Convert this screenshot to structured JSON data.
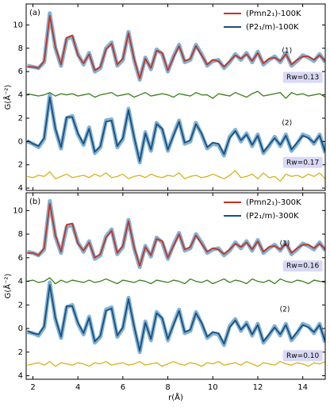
{
  "chart_data": [
    {
      "type": "line",
      "panel_label": "(a)",
      "ylabel": "G(Å⁻²)",
      "annotations": [
        "(1)",
        "Rw=0.13",
        "(2)",
        "Rw=0.17"
      ],
      "x": [
        1.75,
        2.0,
        2.25,
        2.5,
        2.75,
        3.0,
        3.25,
        3.5,
        3.75,
        4.0,
        4.25,
        4.5,
        4.75,
        5.0,
        5.25,
        5.5,
        5.75,
        6.0,
        6.25,
        6.5,
        6.75,
        7.0,
        7.25,
        7.5,
        7.75,
        8.0,
        8.25,
        8.5,
        8.75,
        9.0,
        9.25,
        9.5,
        9.75,
        10.0,
        10.25,
        10.5,
        10.75,
        11.0,
        11.25,
        11.5,
        11.75,
        12.0,
        12.25,
        12.5,
        12.75,
        13.0,
        13.25,
        13.5,
        13.75,
        14.0,
        14.25,
        14.5,
        14.75,
        15.0
      ],
      "xlim": [
        1.7,
        15
      ],
      "xticks": [
        2,
        4,
        6,
        8,
        10,
        12,
        14
      ],
      "ylim": [
        -4.2,
        11.8
      ],
      "yticks": [
        {
          "value": -4,
          "label": "4"
        },
        {
          "value": -2,
          "label": "2"
        },
        0,
        2,
        4,
        6,
        8,
        10
      ],
      "series": [
        {
          "color": "#7fb3d8",
          "values": [
            6.5,
            6.4,
            6.3,
            6.8,
            11.0,
            8.0,
            6.5,
            8.8,
            9.0,
            7.5,
            6.6,
            7.6,
            6.0,
            6.3,
            8.0,
            8.5,
            6.5,
            7.0,
            9.4,
            7.0,
            5.3,
            7.2,
            6.2,
            7.9,
            7.5,
            6.0,
            7.3,
            8.3,
            6.8,
            7.0,
            8.3,
            7.5,
            6.5,
            6.9,
            7.0,
            6.3,
            6.8,
            7.5,
            7.0,
            7.6,
            6.8,
            7.7,
            6.6,
            7.0,
            7.3,
            6.8,
            7.6,
            6.5,
            6.9,
            7.4,
            7.2,
            6.9,
            7.5,
            6.8
          ]
        },
        {
          "name": "(Pmn2₁)-100K",
          "color": "#c8321e",
          "values": [
            6.4,
            6.4,
            6.3,
            6.9,
            10.8,
            8.1,
            6.6,
            8.9,
            9.1,
            7.4,
            6.7,
            7.5,
            6.1,
            6.4,
            7.9,
            8.4,
            6.6,
            7.1,
            9.3,
            7.1,
            5.4,
            7.1,
            6.3,
            7.8,
            7.6,
            6.1,
            7.2,
            8.2,
            6.9,
            7.1,
            8.2,
            7.4,
            6.6,
            7.0,
            6.9,
            6.4,
            6.9,
            7.4,
            7.1,
            7.5,
            6.9,
            7.6,
            6.7,
            7.1,
            7.2,
            6.9,
            7.5,
            6.6,
            7.0,
            7.3,
            7.3,
            7.0,
            7.4,
            6.9
          ]
        },
        {
          "color": "#7fb3d8",
          "values": [
            0.0,
            -0.2,
            -0.5,
            0.2,
            4.0,
            1.0,
            -0.6,
            2.0,
            2.2,
            0.6,
            -0.3,
            1.2,
            -1.0,
            -0.5,
            1.8,
            1.9,
            -0.5,
            0.2,
            2.8,
            0.3,
            -1.8,
            0.8,
            -0.8,
            1.6,
            1.0,
            -0.8,
            0.6,
            1.8,
            -0.2,
            0.0,
            1.6,
            0.6,
            -0.6,
            -0.2,
            -0.3,
            -1.2,
            0.4,
            1.0,
            0.0,
            0.7,
            -0.4,
            0.6,
            -1.0,
            -0.4,
            0.4,
            -0.4,
            0.6,
            -0.8,
            -0.2,
            0.6,
            0.4,
            -0.2,
            0.6,
            -1.0
          ]
        },
        {
          "name": "(P2₁/m)-100K",
          "color": "#1f4e79",
          "values": [
            0.1,
            -0.2,
            -0.4,
            0.3,
            3.8,
            1.1,
            -0.5,
            2.1,
            2.1,
            0.7,
            -0.2,
            1.1,
            -0.9,
            -0.4,
            1.7,
            1.8,
            -0.4,
            0.3,
            2.7,
            0.4,
            -1.7,
            0.7,
            -0.7,
            1.5,
            1.1,
            -0.7,
            0.5,
            1.7,
            -0.1,
            0.1,
            1.5,
            0.7,
            -0.5,
            -0.1,
            -0.2,
            -1.1,
            0.3,
            0.9,
            0.1,
            0.6,
            -0.3,
            0.5,
            -0.9,
            -0.3,
            0.3,
            -0.3,
            0.5,
            -0.7,
            -0.1,
            0.5,
            0.3,
            -0.1,
            0.5,
            -0.9
          ]
        },
        {
          "color": "#3a7d1a",
          "values": [
            4.1,
            4.0,
            3.9,
            4.0,
            4.2,
            3.9,
            4.1,
            4.0,
            4.1,
            3.9,
            4.0,
            4.1,
            3.8,
            4.0,
            4.1,
            4.2,
            3.9,
            4.0,
            4.1,
            3.8,
            4.0,
            4.2,
            3.9,
            4.0,
            4.1,
            4.0,
            3.8,
            4.1,
            4.0,
            3.9,
            4.2,
            4.0,
            4.0,
            3.7,
            4.1,
            4.0,
            3.9,
            4.2,
            4.0,
            3.8,
            4.1,
            4.3,
            3.9,
            4.0,
            4.1,
            4.2,
            3.7,
            4.2,
            4.0,
            4.1,
            3.9,
            4.0,
            4.1,
            3.8
          ]
        },
        {
          "color": "#d4b41c",
          "values": [
            -3.0,
            -3.1,
            -2.9,
            -3.0,
            -2.6,
            -3.2,
            -3.0,
            -2.8,
            -3.1,
            -3.0,
            -2.9,
            -3.1,
            -2.8,
            -3.0,
            -2.7,
            -3.1,
            -3.0,
            -2.8,
            -3.2,
            -3.0,
            -2.9,
            -3.1,
            -2.8,
            -3.0,
            -3.1,
            -2.9,
            -3.0,
            -2.7,
            -3.2,
            -3.0,
            -2.9,
            -3.1,
            -3.0,
            -2.8,
            -3.0,
            -3.2,
            -2.9,
            -2.5,
            -3.1,
            -3.0,
            -2.8,
            -3.2,
            -2.7,
            -3.1,
            -3.0,
            -3.4,
            -2.8,
            -3.0,
            -2.9,
            -3.1,
            -2.8,
            -3.0,
            -2.7,
            -3.2
          ]
        }
      ]
    },
    {
      "type": "line",
      "panel_label": "(b)",
      "ylabel": "G(Å⁻²)",
      "xlabel": "r(Å)",
      "annotations": [
        "(1)",
        "Rw=0.16",
        "(2)",
        "Rw=0.10"
      ],
      "x": [
        1.75,
        2.0,
        2.25,
        2.5,
        2.75,
        3.0,
        3.25,
        3.5,
        3.75,
        4.0,
        4.25,
        4.5,
        4.75,
        5.0,
        5.25,
        5.5,
        5.75,
        6.0,
        6.25,
        6.5,
        6.75,
        7.0,
        7.25,
        7.5,
        7.75,
        8.0,
        8.25,
        8.5,
        8.75,
        9.0,
        9.25,
        9.5,
        9.75,
        10.0,
        10.25,
        10.5,
        10.75,
        11.0,
        11.25,
        11.5,
        11.75,
        12.0,
        12.25,
        12.5,
        12.75,
        13.0,
        13.25,
        13.5,
        13.75,
        14.0,
        14.25,
        14.5,
        14.75,
        15.0
      ],
      "xlim": [
        1.7,
        15
      ],
      "xticks": [
        2,
        4,
        6,
        8,
        10,
        12,
        14
      ],
      "ylim": [
        -4.3,
        11.5
      ],
      "yticks": [
        {
          "value": -4,
          "label": "4"
        },
        {
          "value": -2,
          "label": "2"
        },
        0,
        2,
        4,
        6,
        8,
        10
      ],
      "series": [
        {
          "color": "#7fb3d8",
          "values": [
            6.5,
            6.4,
            6.2,
            6.7,
            10.8,
            7.8,
            6.4,
            8.6,
            8.8,
            7.3,
            6.5,
            7.4,
            5.9,
            6.2,
            7.8,
            8.4,
            6.3,
            6.9,
            9.2,
            6.8,
            5.2,
            7.0,
            6.1,
            7.7,
            7.3,
            5.9,
            7.1,
            8.1,
            6.6,
            6.8,
            8.0,
            7.3,
            6.4,
            6.7,
            6.8,
            6.2,
            6.6,
            7.3,
            6.8,
            7.4,
            6.6,
            7.5,
            6.4,
            6.8,
            7.1,
            6.6,
            7.3,
            6.3,
            6.7,
            7.2,
            7.0,
            6.7,
            7.3,
            6.6
          ]
        },
        {
          "name": "(Pmn2₁)-300K",
          "color": "#c8321e",
          "values": [
            6.4,
            6.4,
            6.2,
            6.8,
            10.6,
            7.9,
            6.5,
            8.8,
            8.9,
            7.2,
            6.6,
            7.3,
            6.0,
            6.3,
            7.7,
            8.3,
            6.4,
            7.0,
            9.1,
            6.9,
            5.3,
            6.9,
            6.2,
            7.6,
            7.4,
            6.0,
            7.0,
            8.0,
            6.7,
            6.9,
            7.9,
            7.2,
            6.5,
            6.8,
            6.7,
            6.3,
            6.7,
            7.2,
            6.9,
            7.3,
            6.7,
            7.4,
            6.5,
            6.9,
            7.0,
            6.7,
            7.2,
            6.4,
            6.8,
            7.1,
            7.1,
            6.8,
            7.2,
            6.7
          ]
        },
        {
          "color": "#7fb3d8",
          "values": [
            -0.3,
            -0.4,
            -0.6,
            0.1,
            3.9,
            0.8,
            -0.8,
            1.8,
            2.0,
            0.4,
            -0.5,
            1.0,
            -1.2,
            -0.7,
            1.6,
            1.8,
            -0.7,
            0.0,
            2.6,
            0.1,
            -2.0,
            0.6,
            -1.0,
            1.4,
            0.8,
            -1.0,
            0.4,
            1.6,
            -0.4,
            -0.2,
            1.4,
            0.4,
            -0.8,
            -0.4,
            -0.5,
            -1.4,
            0.2,
            0.8,
            -0.2,
            0.5,
            -0.6,
            0.4,
            -1.2,
            -0.6,
            0.2,
            -0.6,
            0.4,
            -1.0,
            -0.4,
            0.4,
            0.2,
            -0.4,
            0.4,
            -1.2
          ]
        },
        {
          "name": "(P2₁/m)-300K",
          "color": "#1f4e79",
          "values": [
            -0.2,
            -0.4,
            -0.5,
            0.2,
            3.7,
            0.9,
            -0.7,
            1.9,
            1.9,
            0.5,
            -0.4,
            0.9,
            -1.1,
            -0.6,
            1.5,
            1.7,
            -0.6,
            0.1,
            2.5,
            0.2,
            -1.9,
            0.5,
            -0.9,
            1.3,
            0.9,
            -0.9,
            0.3,
            1.5,
            -0.3,
            -0.1,
            1.3,
            0.5,
            -0.7,
            -0.3,
            -0.4,
            -1.3,
            0.1,
            0.7,
            -0.1,
            0.4,
            -0.5,
            0.3,
            -1.1,
            -0.5,
            0.1,
            -0.5,
            0.3,
            -0.9,
            -0.3,
            0.3,
            0.1,
            -0.3,
            0.3,
            -1.1
          ]
        },
        {
          "color": "#3a7d1a",
          "values": [
            4.0,
            4.1,
            3.9,
            4.0,
            4.3,
            3.8,
            4.1,
            3.9,
            4.1,
            4.0,
            3.9,
            4.1,
            3.9,
            4.0,
            4.2,
            4.0,
            3.8,
            4.1,
            4.0,
            3.9,
            4.1,
            4.0,
            3.8,
            4.1,
            4.0,
            3.9,
            4.1,
            4.0,
            3.8,
            4.2,
            4.0,
            3.9,
            4.1,
            3.8,
            4.0,
            4.2,
            3.9,
            4.1,
            4.0,
            3.8,
            4.2,
            4.0,
            3.9,
            4.1,
            3.8,
            4.2,
            4.0,
            3.9,
            4.1,
            4.0,
            3.8,
            4.1,
            4.0,
            3.9
          ]
        },
        {
          "color": "#d4b41c",
          "values": [
            -3.1,
            -3.0,
            -2.9,
            -3.1,
            -2.8,
            -3.2,
            -2.9,
            -3.0,
            -3.1,
            -2.9,
            -3.0,
            -3.2,
            -2.9,
            -3.0,
            -2.8,
            -3.1,
            -3.0,
            -2.9,
            -3.1,
            -3.0,
            -2.8,
            -3.1,
            -3.0,
            -2.9,
            -3.2,
            -3.0,
            -2.8,
            -3.0,
            -3.1,
            -2.9,
            -3.0,
            -3.2,
            -2.9,
            -3.0,
            -2.8,
            -3.1,
            -3.0,
            -2.9,
            -3.1,
            -2.8,
            -3.0,
            -3.2,
            -2.9,
            -3.0,
            -3.1,
            -2.8,
            -3.0,
            -3.1,
            -2.9,
            -3.0,
            -3.2,
            -2.9,
            -3.0,
            -2.8
          ]
        }
      ]
    }
  ]
}
